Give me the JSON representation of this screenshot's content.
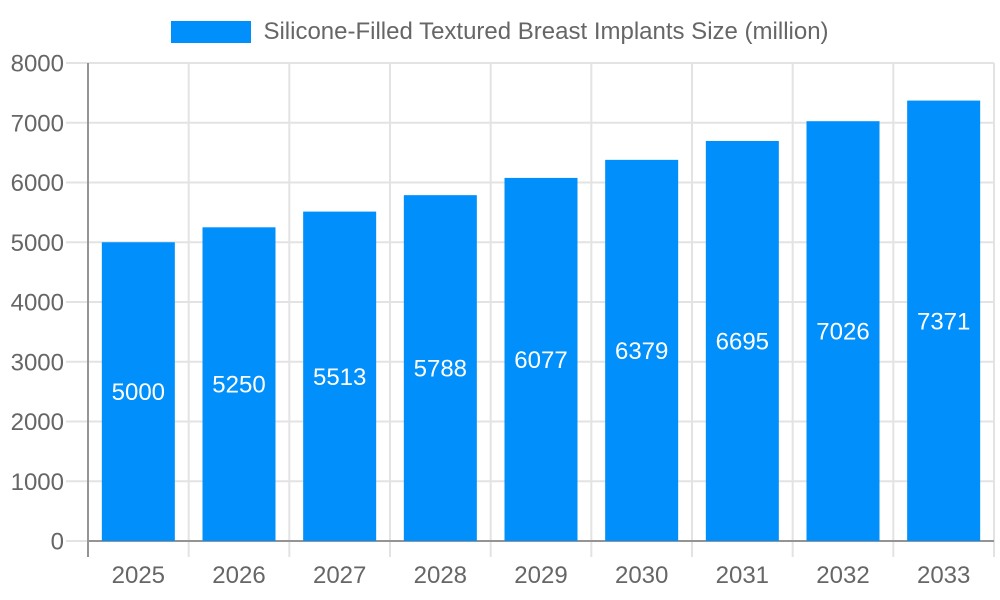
{
  "chart_data": {
    "type": "bar",
    "title": "Silicone-Filled Textured Breast Implants Size (million)",
    "legend": {
      "label": "Silicone-Filled Textured Breast Implants Size (million)",
      "position": "top"
    },
    "categories": [
      "2025",
      "2026",
      "2027",
      "2028",
      "2029",
      "2030",
      "2031",
      "2032",
      "2033"
    ],
    "series": [
      {
        "name": "Silicone-Filled Textured Breast Implants Size (million)",
        "values": [
          5000,
          5250,
          5513,
          5788,
          6077,
          6379,
          6695,
          7026,
          7371
        ]
      }
    ],
    "value_labels": [
      "5000",
      "5250",
      "5513",
      "5788",
      "6077",
      "6379",
      "6695",
      "7026",
      "7371"
    ],
    "xlabel": "",
    "ylabel": "",
    "ylim": [
      0,
      8000
    ],
    "ytick_step": 1000,
    "ytick_labels": [
      "0",
      "1000",
      "2000",
      "3000",
      "4000",
      "5000",
      "6000",
      "7000",
      "8000"
    ],
    "grid": true,
    "colors": {
      "bar": "#008FFB",
      "value_label": "#FFFFFF",
      "axis_text": "#666666",
      "grid_line": "#E3E3E3",
      "axis_line": "#949494",
      "background": "#FFFFFF"
    }
  }
}
